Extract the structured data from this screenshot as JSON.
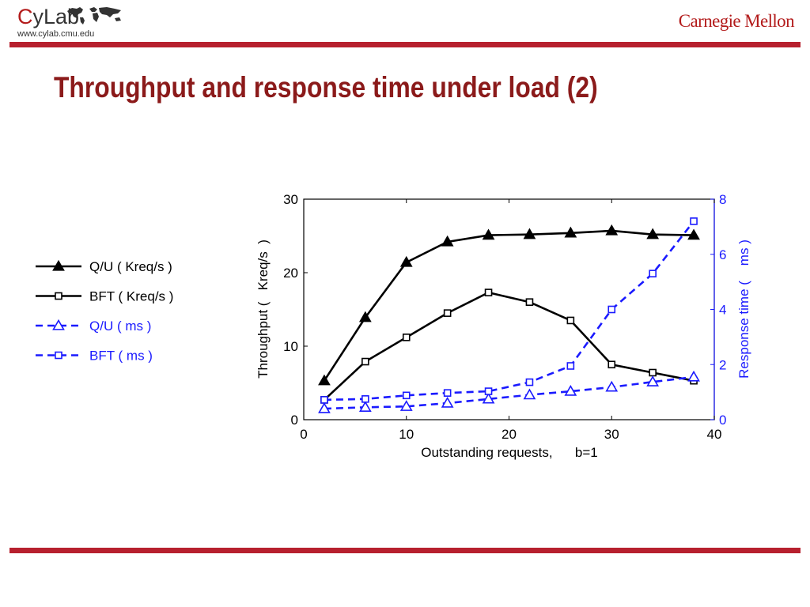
{
  "header": {
    "logo_text_c": "C",
    "logo_text_rest": "yLab",
    "logo_url": "www.cylab.cmu.edu",
    "university": "Carnegie Mellon",
    "accent_color": "#b7202e"
  },
  "slide": {
    "title": "Throughput and response time under load (2)"
  },
  "chart_data": {
    "type": "line",
    "xlabel": "Outstanding requests,      b=1",
    "ylabel_left": "Throughput (   Kreq/s  )",
    "ylabel_right": "Response time (    ms )",
    "xlim": [
      0,
      40
    ],
    "ylim_left": [
      0,
      30
    ],
    "ylim_right": [
      0,
      8
    ],
    "xticks": [
      0,
      10,
      20,
      30,
      40
    ],
    "yticks_left": [
      0,
      10,
      20,
      30
    ],
    "yticks_right": [
      0,
      2,
      4,
      6,
      8
    ],
    "legend_position": "left, outside plot",
    "x": [
      2,
      6,
      10,
      14,
      18,
      22,
      26,
      30,
      34,
      38
    ],
    "series": [
      {
        "name": "Q/U ( Kreq/s  )",
        "axis": "left",
        "color": "#000000",
        "dash": "solid",
        "marker": "triangle",
        "values": [
          5.3,
          13.9,
          21.4,
          24.2,
          25.1,
          25.2,
          25.4,
          25.7,
          25.2,
          25.1
        ]
      },
      {
        "name": "BFT (  Kreq/s  )",
        "axis": "left",
        "color": "#000000",
        "dash": "solid",
        "marker": "square",
        "values": [
          2.7,
          7.9,
          11.2,
          14.5,
          17.3,
          16.0,
          13.5,
          7.5,
          6.4,
          5.3
        ]
      },
      {
        "name": "Q/U ( ms )",
        "axis": "right",
        "color": "#1a1aff",
        "dash": "dashed",
        "marker": "triangle",
        "values": [
          0.4,
          0.45,
          0.48,
          0.6,
          0.75,
          0.9,
          1.03,
          1.18,
          1.37,
          1.55
        ]
      },
      {
        "name": "BFT (  ms )",
        "axis": "right",
        "color": "#1a1aff",
        "dash": "dashed",
        "marker": "square",
        "values": [
          0.72,
          0.75,
          0.88,
          0.97,
          1.03,
          1.36,
          1.95,
          4.0,
          5.3,
          7.2
        ]
      }
    ]
  }
}
